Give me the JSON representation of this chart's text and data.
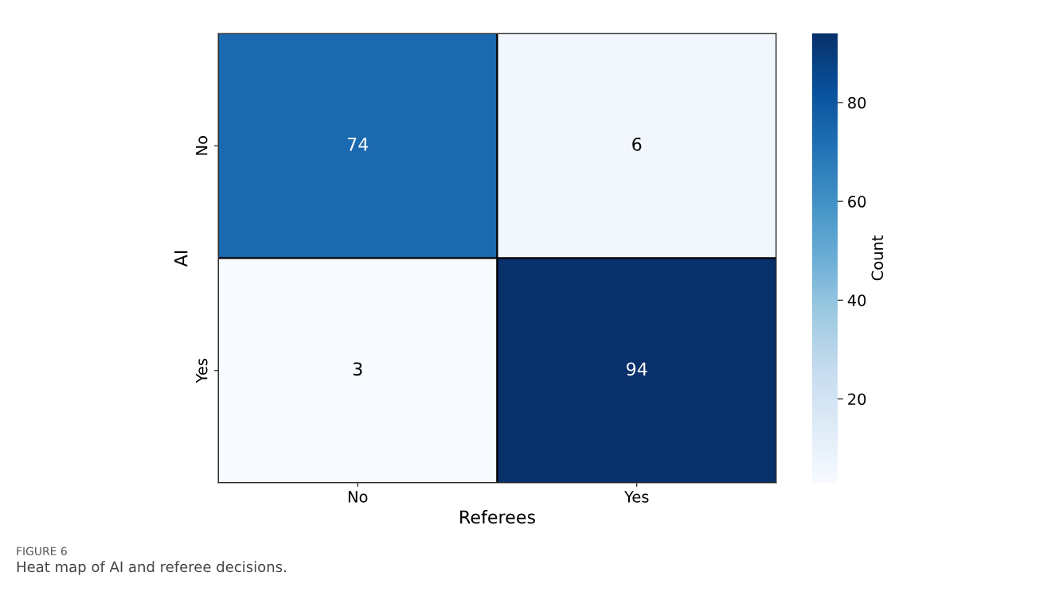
{
  "chart_data": {
    "type": "heatmap",
    "xlabel": "Referees",
    "ylabel": "AI",
    "clabel": "Count",
    "categories": [
      "No",
      "Yes"
    ],
    "y_categories": [
      "No",
      "Yes"
    ],
    "cells": [
      [
        74,
        6
      ],
      [
        3,
        94
      ]
    ],
    "data_labels": true,
    "clim": [
      3,
      94
    ],
    "cticks": [
      20,
      40,
      60,
      80
    ],
    "annotations": [
      "FIGURE 6",
      "Heat map of AI and referee decisions."
    ]
  }
}
